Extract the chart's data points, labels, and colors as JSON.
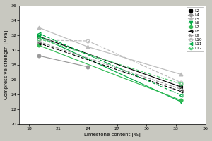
{
  "x": [
    19,
    24,
    33.5
  ],
  "series": [
    {
      "label": "L2",
      "y": [
        31.8,
        null,
        25.0
      ],
      "color": "#000000",
      "linestyle": "-",
      "marker": "s",
      "markersize": 3.5,
      "fillstyle": "full"
    },
    {
      "label": "L4",
      "y": [
        29.2,
        27.7,
        null
      ],
      "color": "#999999",
      "linestyle": "-",
      "marker": "o",
      "markersize": 3.5,
      "fillstyle": "full"
    },
    {
      "label": "L5",
      "y": [
        33.0,
        30.4,
        26.7
      ],
      "color": "#bbbbbb",
      "linestyle": "-",
      "marker": "^",
      "markersize": 3.5,
      "fillstyle": "full"
    },
    {
      "label": "L6",
      "y": [
        31.8,
        null,
        23.0
      ],
      "color": "#00aa44",
      "linestyle": "-",
      "marker": "v",
      "markersize": 3.5,
      "fillstyle": "full"
    },
    {
      "label": "L7",
      "y": [
        30.6,
        null,
        23.2
      ],
      "color": "#33bb55",
      "linestyle": "-",
      "marker": "o",
      "markersize": 3.5,
      "fillstyle": "full"
    },
    {
      "label": "L8",
      "y": [
        30.9,
        null,
        24.4
      ],
      "color": "#000000",
      "linestyle": "--",
      "marker": "<",
      "markersize": 3.5,
      "fillstyle": "none"
    },
    {
      "label": "L9",
      "y": [
        31.1,
        null,
        24.7
      ],
      "color": "#999999",
      "linestyle": "--",
      "marker": ">",
      "markersize": 3.5,
      "fillstyle": "none"
    },
    {
      "label": "L10",
      "y": [
        31.3,
        31.2,
        25.6
      ],
      "color": "#bbbbbb",
      "linestyle": "--",
      "marker": "o",
      "markersize": 3.5,
      "fillstyle": "none"
    },
    {
      "label": "L11",
      "y": [
        32.2,
        null,
        23.9
      ],
      "color": "#00aa44",
      "linestyle": "--",
      "marker": "<",
      "markersize": 3.5,
      "fillstyle": "none"
    },
    {
      "label": "L12",
      "y": [
        31.5,
        null,
        25.4
      ],
      "color": "#55cc77",
      "linestyle": "--",
      "marker": "o",
      "markersize": 3.5,
      "fillstyle": "none"
    }
  ],
  "xlim": [
    17,
    36
  ],
  "ylim": [
    20,
    36
  ],
  "xticks": [
    18,
    21,
    24,
    27,
    30,
    33,
    36
  ],
  "yticks": [
    20,
    22,
    24,
    26,
    28,
    30,
    32,
    34,
    36
  ],
  "xlabel": "Limestone content [%]",
  "ylabel": "Compressive strength [MPa]",
  "bg_color": "#c8c8c0",
  "plot_bg": "#ffffff"
}
